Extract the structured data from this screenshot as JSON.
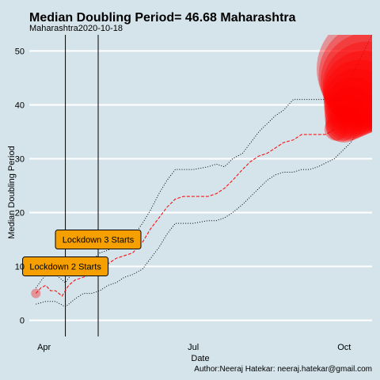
{
  "chart_data": {
    "type": "line",
    "title": "Median Doubling Period=  46.68 Maharashtra",
    "subtitle": "Maharashtra2020-10-18",
    "xlabel": "Date",
    "ylabel": "Median Doubling Period",
    "caption": "Author:Neeraj Hatekar: neeraj.hatekar@gmail.com",
    "x_ticks": [
      "Apr",
      "Jul",
      "Oct"
    ],
    "y_ticks": [
      0,
      10,
      20,
      30,
      40,
      50
    ],
    "xlim": [
      "2020-03-23",
      "2020-10-18"
    ],
    "ylim": [
      -3,
      53
    ],
    "grid": true,
    "vlines": [
      {
        "x": "2020-04-14",
        "label": "Lockdown 2 Starts",
        "y": 10
      },
      {
        "x": "2020-05-04",
        "label": "Lockdown 3 Starts",
        "y": 15
      }
    ],
    "series": [
      {
        "role": "median",
        "color": "#ff0000",
        "x": [
          "2020-03-27",
          "2020-03-30",
          "2020-04-02",
          "2020-04-05",
          "2020-04-08",
          "2020-04-12",
          "2020-04-16",
          "2020-04-20",
          "2020-04-25",
          "2020-04-30",
          "2020-05-05",
          "2020-05-10",
          "2020-05-15",
          "2020-05-20",
          "2020-05-25",
          "2020-05-31",
          "2020-06-05",
          "2020-06-10",
          "2020-06-15",
          "2020-06-20",
          "2020-06-25",
          "2020-07-01",
          "2020-07-05",
          "2020-07-10",
          "2020-07-15",
          "2020-07-20",
          "2020-07-25",
          "2020-07-31",
          "2020-08-05",
          "2020-08-10",
          "2020-08-15",
          "2020-08-20",
          "2020-08-25",
          "2020-08-31",
          "2020-09-05",
          "2020-09-10",
          "2020-09-15",
          "2020-09-20",
          "2020-09-25"
        ],
        "values": [
          5,
          6,
          6.5,
          5.5,
          5.5,
          4.5,
          6.5,
          7.5,
          8,
          8.5,
          9.5,
          10.5,
          11.5,
          12,
          12.5,
          14.5,
          17,
          19,
          21,
          22.5,
          23,
          23,
          23,
          23,
          23.5,
          24.5,
          26,
          28,
          29.5,
          30.5,
          31,
          32,
          33,
          33.5,
          34.5,
          34.5,
          34.5,
          34.5,
          35.5
        ]
      },
      {
        "role": "upper",
        "color": "#000000",
        "x": [
          "2020-03-27",
          "2020-04-02",
          "2020-04-08",
          "2020-04-14",
          "2020-04-20",
          "2020-04-25",
          "2020-04-30",
          "2020-05-05",
          "2020-05-10",
          "2020-05-15",
          "2020-05-20",
          "2020-05-25",
          "2020-05-31",
          "2020-06-05",
          "2020-06-10",
          "2020-06-15",
          "2020-06-20",
          "2020-06-25",
          "2020-07-01",
          "2020-07-10",
          "2020-07-15",
          "2020-07-20",
          "2020-07-25",
          "2020-07-31",
          "2020-08-05",
          "2020-08-10",
          "2020-08-15",
          "2020-08-20",
          "2020-08-25",
          "2020-08-31",
          "2020-09-05",
          "2020-09-10",
          "2020-09-15",
          "2020-09-25",
          "2020-10-05",
          "2020-10-18"
        ],
        "values": [
          6,
          8.5,
          8.5,
          7,
          9.5,
          10,
          11,
          12.5,
          13,
          14,
          15,
          15.5,
          18,
          20.5,
          23.5,
          26,
          28,
          28,
          28,
          28.5,
          29,
          28.5,
          30,
          31,
          33,
          35,
          36.5,
          38,
          39,
          41,
          41,
          41,
          41,
          41,
          45,
          53
        ]
      },
      {
        "role": "lower",
        "color": "#000000",
        "x": [
          "2020-03-27",
          "2020-04-02",
          "2020-04-08",
          "2020-04-14",
          "2020-04-20",
          "2020-04-25",
          "2020-04-30",
          "2020-05-05",
          "2020-05-10",
          "2020-05-15",
          "2020-05-20",
          "2020-05-25",
          "2020-05-31",
          "2020-06-05",
          "2020-06-10",
          "2020-06-15",
          "2020-06-20",
          "2020-06-25",
          "2020-07-01",
          "2020-07-10",
          "2020-07-15",
          "2020-07-20",
          "2020-07-25",
          "2020-07-31",
          "2020-08-05",
          "2020-08-10",
          "2020-08-15",
          "2020-08-20",
          "2020-08-25",
          "2020-08-31",
          "2020-09-05",
          "2020-09-10",
          "2020-09-15",
          "2020-09-25",
          "2020-10-05",
          "2020-10-18"
        ],
        "values": [
          3,
          3.5,
          3.5,
          2.5,
          4,
          5,
          5,
          5.5,
          6.5,
          7,
          8,
          8.5,
          9.5,
          11.5,
          13.5,
          16,
          18,
          18,
          18,
          18.5,
          18.5,
          19,
          20,
          21.5,
          23,
          24.5,
          26,
          27,
          27.5,
          27.5,
          28,
          28,
          28.5,
          30,
          33,
          40
        ]
      }
    ],
    "points": {
      "color": "#ff0000",
      "x": [
        "2020-03-27",
        "2020-09-26",
        "2020-09-29",
        "2020-10-01",
        "2020-10-03",
        "2020-10-05",
        "2020-10-07",
        "2020-10-09",
        "2020-10-11",
        "2020-10-13",
        "2020-10-15",
        "2020-10-16",
        "2020-10-17",
        "2020-10-18"
      ],
      "values": [
        5,
        35.5,
        36,
        36.5,
        37.5,
        38.5,
        39.5,
        40.5,
        41.5,
        42.5,
        43.5,
        44.5,
        45.5,
        46.68
      ]
    },
    "annotations": [
      "Lockdown 2 Starts",
      "Lockdown 3 Starts"
    ]
  }
}
